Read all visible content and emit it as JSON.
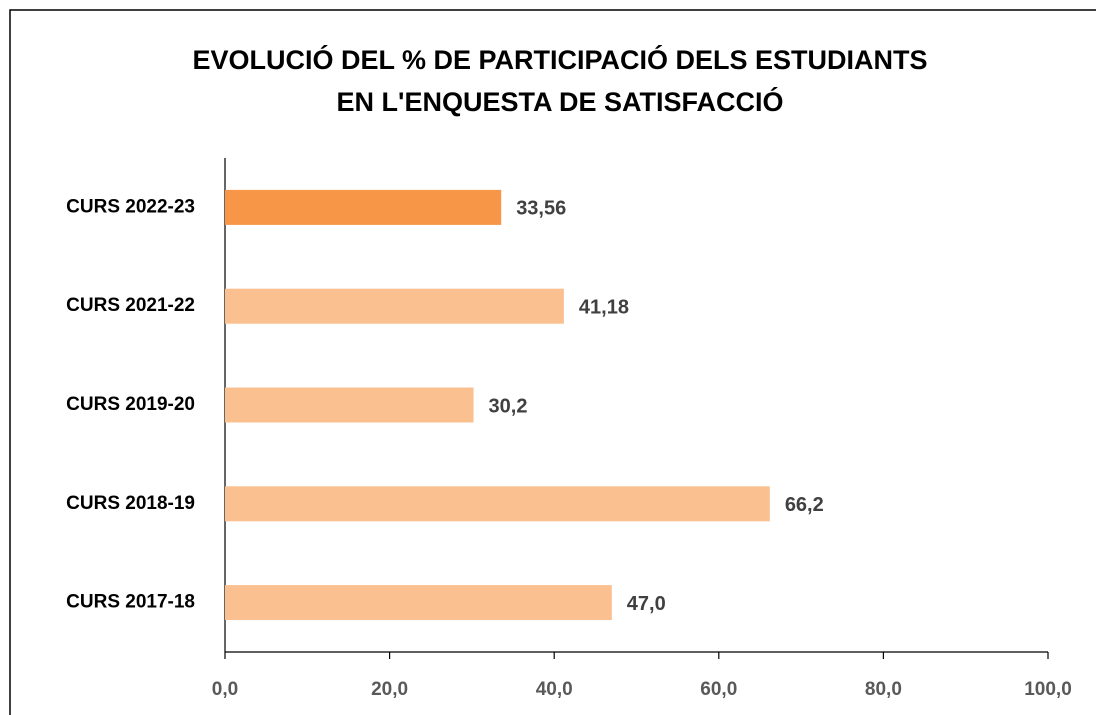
{
  "chart_data": {
    "type": "bar",
    "orientation": "horizontal",
    "title": [
      "EVOLUCIÓ DEL % DE PARTICIPACIÓ DELS ESTUDIANTS",
      "EN L'ENQUESTA DE SATISFACCIÓ"
    ],
    "categories": [
      "CURS 2022-23",
      "CURS 2021-22",
      "CURS 2019-20",
      "CURS 2018-19",
      "CURS 2017-18"
    ],
    "values": [
      33.56,
      41.18,
      30.2,
      66.2,
      47.0
    ],
    "value_labels": [
      "33,56",
      "41,18",
      "30,2",
      "66,2",
      "47,0"
    ],
    "colors": [
      "#f79646",
      "#fac090",
      "#fac090",
      "#fac090",
      "#fac090"
    ],
    "xlim": [
      0,
      100
    ],
    "xticks": [
      {
        "value": 0,
        "label": "0,0"
      },
      {
        "value": 20,
        "label": "20,0"
      },
      {
        "value": 40,
        "label": "40,0"
      },
      {
        "value": 60,
        "label": "60,0"
      },
      {
        "value": 80,
        "label": "80,0"
      },
      {
        "value": 100,
        "label": "100,0"
      }
    ],
    "grid": false
  }
}
